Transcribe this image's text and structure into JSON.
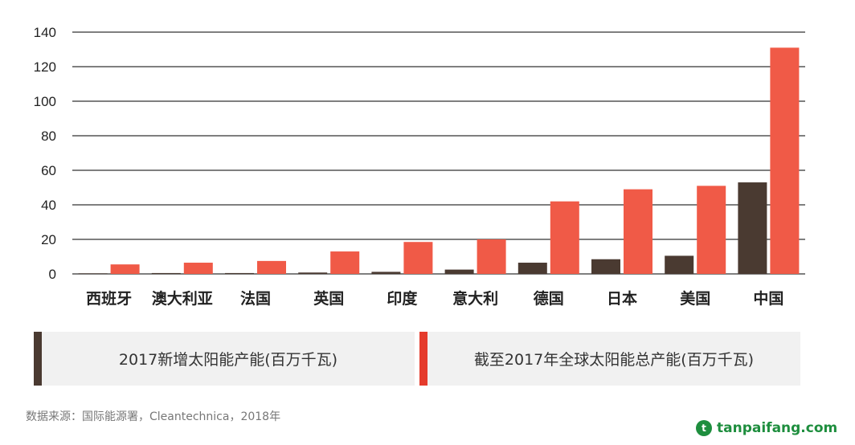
{
  "chart_data": {
    "type": "bar",
    "categories": [
      "西班牙",
      "澳大利亚",
      "法国",
      "英国",
      "印度",
      "意大利",
      "德国",
      "日本",
      "美国",
      "中国"
    ],
    "series": [
      {
        "name": "2017新增太阳能产能(百万千瓦)",
        "color": "#4a3a31",
        "values": [
          0.3,
          0.5,
          0.5,
          0.8,
          1.2,
          2.5,
          6.5,
          8.5,
          10.5,
          53
        ]
      },
      {
        "name": "截至2017年全球太阳能总产能(百万千瓦)",
        "color": "#f05a47",
        "values": [
          5.5,
          6.5,
          7.5,
          13,
          18.5,
          20,
          42,
          49,
          51,
          131
        ]
      }
    ],
    "y_ticks": [
      "0",
      "20",
      "40",
      "60",
      "80",
      "100",
      "120",
      "140"
    ],
    "ylim": [
      0,
      140
    ],
    "grid": true,
    "legend_position": "bottom"
  },
  "legend_colors": {
    "series1": "#4a3a31",
    "series2": "#e53b2c"
  },
  "source": "数据来源：国际能源署，Cleantechnica，2018年",
  "watermark": {
    "logo_letter": "t",
    "text": "tanpaifang.com"
  }
}
